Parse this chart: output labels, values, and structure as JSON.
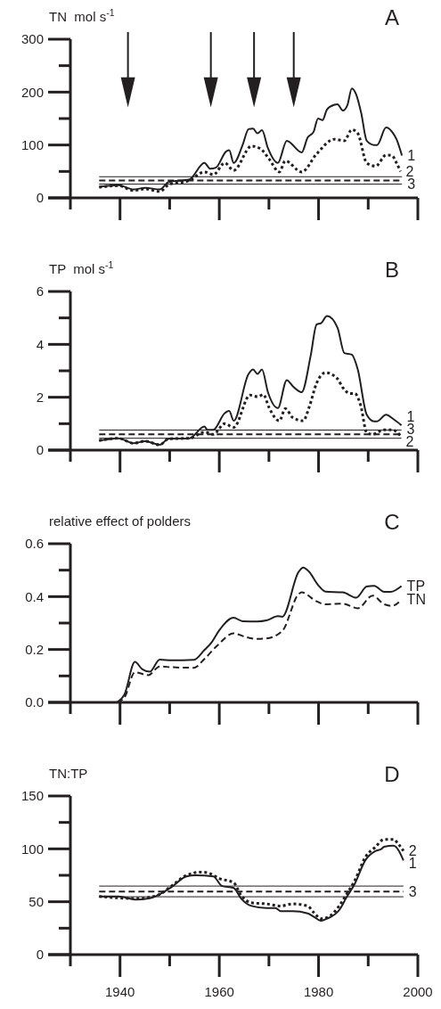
{
  "chart_data": [
    {
      "type": "line",
      "title": "A",
      "ylabel": "TN  mol s$^{-1}$",
      "xlim": [
        1930,
        2000
      ],
      "ylim": [
        0,
        300
      ],
      "xticks": [
        {
          "value": 1930,
          "label": null
        },
        1940,
        {
          "value": 1950,
          "label": null
        },
        1960,
        {
          "value": 1970,
          "label": null
        },
        1980,
        {
          "value": 1990,
          "label": null
        },
        2000
      ],
      "yticks": [
        0,
        {
          "value": 50,
          "label": null
        },
        100,
        {
          "value": 150,
          "label": null
        },
        200,
        {
          "value": 250,
          "label": null
        },
        300
      ],
      "tick_labels": "y",
      "grid": false,
      "legend": false,
      "series": [
        {
          "name": "1",
          "color": "#231f20",
          "line_style": "solid",
          "x": [
            1935.8,
            1939.7,
            1942.7,
            1945.1,
            1948,
            1949.8,
            1954,
            1957,
            1958.2,
            1959.3,
            1961.4,
            1962,
            1962.9,
            1964.7,
            1965.9,
            1966.8,
            1967.7,
            1968.6,
            1969.8,
            1971.8,
            1973.6,
            1976.6,
            1977.8,
            1979,
            1979.9,
            1980.8,
            1981.7,
            1983.2,
            1983.8,
            1984.9,
            1985.8,
            1986.7,
            1987.6,
            1988.6,
            1989.7,
            1991.2,
            1991.8,
            1993.6,
            1994.8,
            1995.7,
            1996.8
          ],
          "values": [
            21,
            24,
            16,
            19,
            16,
            30,
            35,
            66,
            55,
            57,
            88,
            90,
            66,
            100,
            130,
            131,
            122,
            128,
            94,
            66,
            108,
            86,
            114,
            125,
            150,
            147,
            167,
            176,
            177,
            165,
            175,
            207,
            195,
            160,
            108,
            100,
            100,
            133,
            125,
            111,
            80
          ]
        },
        {
          "name": "2",
          "color": "#231f20",
          "line_style": "dotted",
          "x": [
            1935.8,
            1939.7,
            1942.7,
            1945.1,
            1948,
            1949.8,
            1954,
            1957,
            1958.8,
            1961.1,
            1962.9,
            1966.5,
            1968.3,
            1970,
            1972.1,
            1973.3,
            1976.6,
            1979.6,
            1983.2,
            1985.2,
            1986.7,
            1987.9,
            1989.7,
            1991.5,
            1993.6,
            1994.8,
            1995.7,
            1996.5
          ],
          "values": [
            20,
            23,
            14,
            17,
            12,
            25,
            33,
            49,
            44,
            66,
            52,
            98,
            93,
            74,
            49,
            70,
            49,
            83,
            111,
            108,
            129,
            122,
            66,
            60,
            81,
            80,
            66,
            50
          ]
        }
      ],
      "annotations": [
        "3"
      ],
      "ref_lines": [
        {
          "axis": "y",
          "value": 40,
          "line_style": "solid"
        },
        {
          "axis": "y",
          "value": 33,
          "line_style": "dashed"
        },
        {
          "axis": "y",
          "value": 26,
          "line_style": "solid"
        },
        {
          "axis": "x",
          "value": 1941.6
        },
        {
          "axis": "x",
          "value": 1958.3
        },
        {
          "axis": "x",
          "value": 1967
        },
        {
          "axis": "x",
          "value": 1975
        }
      ]
    },
    {
      "type": "line",
      "title": "B",
      "ylabel": "TP  mol s$^{-1}$",
      "xlim": [
        1930,
        2000
      ],
      "ylim": [
        0,
        6
      ],
      "xticks": [
        {
          "value": 1930,
          "label": null
        },
        1940,
        {
          "value": 1950,
          "label": null
        },
        1960,
        {
          "value": 1970,
          "label": null
        },
        1980,
        {
          "value": 1990,
          "label": null
        },
        2000
      ],
      "yticks": [
        0,
        {
          "value": 1,
          "label": null
        },
        2,
        {
          "value": 3,
          "label": null
        },
        4,
        {
          "value": 5,
          "label": null
        },
        6
      ],
      "tick_labels": "y",
      "grid": false,
      "legend": false,
      "series": [
        {
          "name": "1",
          "color": "#231f20",
          "line_style": "solid",
          "x": [
            1935.8,
            1939.7,
            1942.7,
            1945.1,
            1948,
            1949.8,
            1954,
            1957,
            1957.6,
            1958.8,
            1961.1,
            1962,
            1962.9,
            1965.9,
            1966.8,
            1967.7,
            1968.6,
            1969.8,
            1971.8,
            1973.6,
            1974.8,
            1976.6,
            1978.4,
            1979.6,
            1980.5,
            1981.7,
            1983.8,
            1985.2,
            1986.7,
            1987.9,
            1989.7,
            1991.2,
            1991.8,
            1993.6,
            1995.1,
            1996.7
          ],
          "values": [
            0.36,
            0.45,
            0.26,
            0.34,
            0.2,
            0.43,
            0.45,
            0.89,
            0.77,
            0.77,
            1.4,
            1.48,
            1.11,
            2.88,
            3.05,
            2.88,
            3.05,
            2.19,
            1.59,
            2.65,
            2.42,
            2.19,
            3.56,
            4.75,
            4.8,
            5.07,
            4.64,
            3.67,
            3.61,
            3.05,
            1.34,
            1.09,
            1.09,
            1.34,
            1.17,
            0.94
          ]
        },
        {
          "name": "2",
          "color": "#231f20",
          "line_style": "dotted",
          "x": [
            1935.8,
            1939.7,
            1942.7,
            1945.1,
            1948,
            1949.8,
            1954,
            1957,
            1958.8,
            1961.1,
            1962.9,
            1966.2,
            1967.7,
            1968.9,
            1970,
            1972.1,
            1973.3,
            1974.8,
            1976.9,
            1978.1,
            1979.6,
            1981.4,
            1983.8,
            1984.9,
            1986.4,
            1987.3,
            1988.5,
            1989.7,
            1990.9,
            1993.2,
            1994.8,
            1996.5
          ],
          "values": [
            0.36,
            0.45,
            0.26,
            0.34,
            0.2,
            0.43,
            0.45,
            0.68,
            0.6,
            1.0,
            0.86,
            2.08,
            2.02,
            2.1,
            1.62,
            1.11,
            1.57,
            1.23,
            1.11,
            1.62,
            2.53,
            2.93,
            2.7,
            2.36,
            2.14,
            2.14,
            1.68,
            0.66,
            0.6,
            0.77,
            0.77,
            0.55
          ]
        }
      ],
      "annotations": [
        "3"
      ],
      "ref_lines": [
        {
          "axis": "y",
          "value": 0.76,
          "line_style": "solid"
        },
        {
          "axis": "y",
          "value": 0.6,
          "line_style": "dashed"
        },
        {
          "axis": "y",
          "value": 0.45,
          "line_style": "solid"
        }
      ]
    },
    {
      "type": "line",
      "title": "C",
      "ylabel": "relative effect of polders",
      "xlim": [
        1930,
        2000
      ],
      "ylim": [
        0,
        0.6
      ],
      "xticks": [
        {
          "value": 1930,
          "label": null
        },
        1940,
        {
          "value": 1950,
          "label": null
        },
        1960,
        {
          "value": 1970,
          "label": null
        },
        1980,
        {
          "value": 1990,
          "label": null
        },
        2000
      ],
      "yticks": [
        {
          "value": 0,
          "label": "0.0"
        },
        {
          "value": 0.1,
          "label": null
        },
        0.2,
        {
          "value": 0.3,
          "label": null
        },
        0.4,
        {
          "value": 0.5,
          "label": null
        },
        0.6
      ],
      "tick_labels": "y",
      "grid": false,
      "legend": false,
      "series": [
        {
          "name": "TP",
          "color": "#231f20",
          "line_style": "solid",
          "x": [
            1939.4,
            1940.9,
            1943,
            1944.5,
            1946,
            1948,
            1950.4,
            1954.9,
            1957,
            1958.5,
            1959.9,
            1962.9,
            1964.7,
            1967.7,
            1969.5,
            1971.8,
            1972.7,
            1976,
            1976.9,
            1978.1,
            1979.9,
            1981.4,
            1984.9,
            1987.6,
            1989.7,
            1991.2,
            1993.2,
            1994.5,
            1996.7
          ],
          "values": [
            0,
            0.03,
            0.153,
            0.125,
            0.116,
            0.162,
            0.159,
            0.161,
            0.198,
            0.228,
            0.27,
            0.32,
            0.307,
            0.306,
            0.31,
            0.326,
            0.324,
            0.494,
            0.51,
            0.494,
            0.444,
            0.419,
            0.416,
            0.396,
            0.438,
            0.441,
            0.418,
            0.418,
            0.44
          ]
        },
        {
          "name": "TN",
          "color": "#231f20",
          "line_style": "dashed",
          "x": [
            1939.4,
            1940.9,
            1943,
            1945.7,
            1948,
            1950.4,
            1954.9,
            1957,
            1959.6,
            1962.9,
            1965.2,
            1967.7,
            1969.5,
            1972.7,
            1976,
            1976.6,
            1979.6,
            1981.4,
            1984.9,
            1987.9,
            1990.9,
            1993.2,
            1994.8,
            1996.7
          ],
          "values": [
            0,
            0.019,
            0.114,
            0.103,
            0.136,
            0.133,
            0.131,
            0.164,
            0.215,
            0.261,
            0.248,
            0.24,
            0.242,
            0.27,
            0.41,
            0.416,
            0.382,
            0.371,
            0.373,
            0.356,
            0.404,
            0.371,
            0.365,
            0.388
          ]
        }
      ]
    },
    {
      "type": "line",
      "title": "D",
      "ylabel": "TN:TP",
      "xlim": [
        1930,
        2000
      ],
      "ylim": [
        0,
        150
      ],
      "xticks": [
        {
          "value": 1930,
          "label": null
        },
        1940,
        {
          "value": 1950,
          "label": null
        },
        1960,
        {
          "value": 1970,
          "label": null
        },
        1980,
        {
          "value": 1990,
          "label": null
        },
        2000
      ],
      "yticks": [
        0,
        {
          "value": 25,
          "label": null
        },
        50,
        {
          "value": 75,
          "label": null
        },
        100,
        {
          "value": 125,
          "label": null
        },
        150
      ],
      "grid": false,
      "legend": false,
      "series": [
        {
          "name": "1",
          "color": "#231f20",
          "line_style": "solid",
          "x": [
            1935.8,
            1939.7,
            1943.3,
            1945.7,
            1948,
            1950.4,
            1953.4,
            1955.2,
            1958.8,
            1960.5,
            1962.9,
            1964.4,
            1966.5,
            1969.5,
            1971.3,
            1972.4,
            1974.8,
            1977.8,
            1979,
            1980.5,
            1981.7,
            1984.3,
            1985.5,
            1987.3,
            1989.4,
            1991.5,
            1992.7,
            1993.2,
            1995.1,
            1996.2,
            1997.1
          ],
          "values": [
            55,
            55,
            52,
            53,
            57,
            64,
            74,
            75,
            74,
            65,
            63,
            53,
            46,
            44,
            44,
            41,
            41,
            39,
            36,
            32,
            34,
            43,
            53,
            67,
            89,
            98,
            100,
            102,
            103,
            98,
            89
          ]
        },
        {
          "name": "2",
          "color": "#231f20",
          "line_style": "dotted",
          "x": [
            1935.8,
            1943.3,
            1945.7,
            1948,
            1950.4,
            1953.4,
            1956.4,
            1957.9,
            1960,
            1962.9,
            1964.4,
            1966.5,
            1969.5,
            1972.4,
            1974.8,
            1977.8,
            1979,
            1980.5,
            1981.7,
            1984.3,
            1985.5,
            1987.3,
            1989.4,
            1991.5,
            1993.2,
            1995.1,
            1996,
            1997.1
          ],
          "values": [
            55,
            53,
            54,
            57,
            65,
            75,
            78,
            77,
            72,
            68,
            56,
            49,
            48,
            46,
            48,
            46,
            40,
            34,
            35,
            47,
            56,
            70,
            92,
            102,
            109,
            109,
            105,
            98
          ]
        }
      ],
      "annotations": [
        "3"
      ],
      "ref_lines": [
        {
          "axis": "y",
          "value": 64.8,
          "line_style": "solid"
        },
        {
          "axis": "y",
          "value": 59.7,
          "line_style": "dashed"
        },
        {
          "axis": "y",
          "value": 54.7,
          "line_style": "solid"
        }
      ]
    }
  ]
}
